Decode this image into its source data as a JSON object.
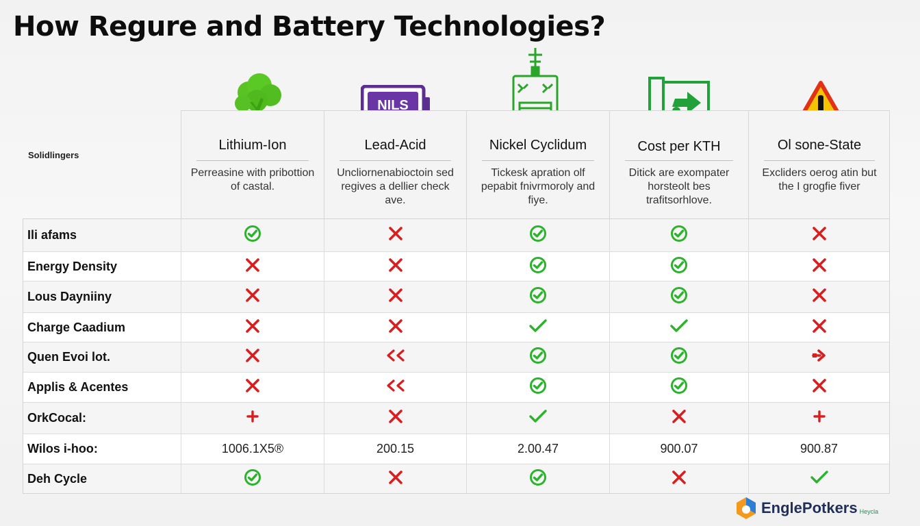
{
  "title": "How Regure and Battery Technologies?",
  "corner_label": "Solidlingers",
  "columns": [
    {
      "name": "Lithium-Ion",
      "desc": "Perreasine with pribottion of castal.",
      "icon": "tree-icon"
    },
    {
      "name": "Lead-Acid",
      "desc": "Uncliornenabioctoin sed regives a dellier check ave.",
      "icon": "battery-icon",
      "icon_text": "NILS"
    },
    {
      "name": "Nickel Cyclidum",
      "desc": "Tickesk apration olf pepabit fnivrmoroly and fiye.",
      "icon": "circuit-device-icon"
    },
    {
      "name": "Cost per KTH",
      "desc": "Ditick are exompater horsteolt bes trafitsorhlove.",
      "icon": "exit-arrow-icon"
    },
    {
      "name": "Ol sone-State",
      "desc": "Excliders oerog atin but the I grogfie fiver",
      "icon": "warning-icon"
    }
  ],
  "rows": [
    {
      "label": "Ili afams",
      "cells": [
        "check-circle",
        "cross",
        "check-circle",
        "check-circle",
        "cross"
      ]
    },
    {
      "label": "Energy Density",
      "cells": [
        "cross",
        "cross",
        "check-circle",
        "check-circle",
        "cross"
      ]
    },
    {
      "label": "Lous Dayniiny",
      "cells": [
        "cross",
        "cross",
        "check-circle",
        "check-circle",
        "cross"
      ]
    },
    {
      "label": "Charge Caadium",
      "cells": [
        "cross",
        "cross",
        "check",
        "check",
        "cross"
      ]
    },
    {
      "label": "Quen Evoi lot.",
      "cells": [
        "cross",
        "double-chevron",
        "check-circle",
        "check-circle",
        "arrow-right"
      ]
    },
    {
      "label": "Applis & Acentes",
      "cells": [
        "cross",
        "double-chevron",
        "check-circle",
        "check-circle",
        "cross"
      ]
    },
    {
      "label": "OrkCocal:",
      "cells": [
        "plus",
        "cross",
        "check",
        "cross",
        "plus"
      ]
    },
    {
      "label": "Wilos i-hoo:",
      "cells": [
        "1006.1X5®",
        "200.15",
        "2.00.47",
        "900.07",
        "900.87"
      ]
    },
    {
      "label": "Deh Cycle",
      "cells": [
        "check-circle",
        "cross",
        "check-circle",
        "cross",
        "check"
      ]
    }
  ],
  "brand": {
    "name": "EnglePotkers",
    "sub": "Heycla",
    "icon": "brand-hexagon-icon"
  },
  "colors": {
    "green": "#2db22d",
    "red": "#d81e1e",
    "purple": "#5c2e91",
    "warning": "#f5c400"
  }
}
